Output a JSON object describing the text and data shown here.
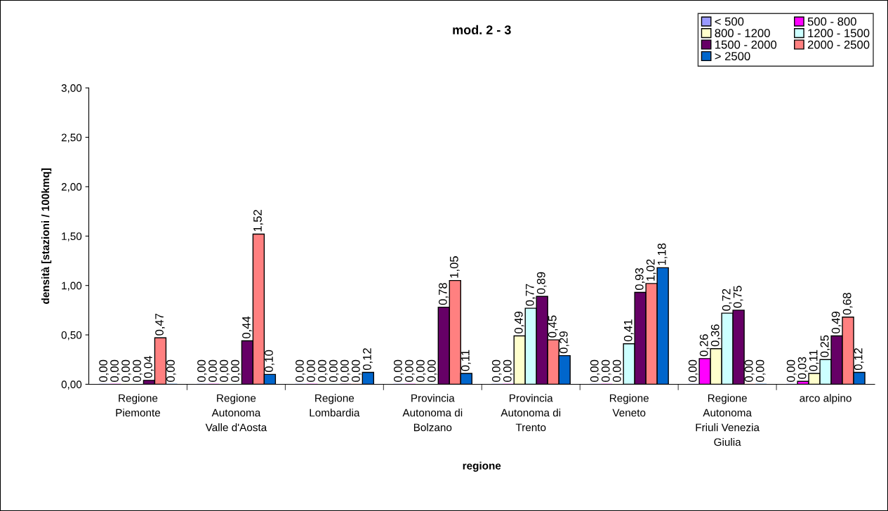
{
  "chart_data": {
    "type": "bar",
    "title": "mod. 2 - 3",
    "xlabel": "regione",
    "ylabel": "densità [stazioni / 100kmq]",
    "categories": [
      "Regione\nPiemonte",
      "Regione\nAutonoma\nValle d'Aosta",
      "Regione\nLombardia",
      "Provincia\nAutonoma di\nBolzano",
      "Provincia\nAutonoma di\nTrento",
      "Regione\nVeneto",
      "Regione\nAutonoma\nFriuli Venezia\nGiulia",
      "arco alpino"
    ],
    "series": [
      {
        "name": "< 500",
        "color": "#9999ff",
        "values": [
          0,
          0,
          0,
          0,
          0,
          0,
          0,
          0
        ],
        "value_labels": [
          "0,00",
          "0,00",
          "0,00",
          "0,00",
          "0,00",
          "0,00",
          "0,00",
          "0,00"
        ]
      },
      {
        "name": "500 - 800",
        "color": "#ff00ff",
        "values": [
          0,
          0,
          0,
          0,
          0,
          0,
          0.26,
          0.03
        ],
        "value_labels": [
          "0,00",
          "0,00",
          "0,00",
          "0,00",
          "0,00",
          "0,00",
          "0,26",
          "0,03"
        ]
      },
      {
        "name": "800 - 1200",
        "color": "#ffffcc",
        "values": [
          0,
          0,
          0,
          0,
          0.49,
          0,
          0.36,
          0.11
        ],
        "value_labels": [
          "0,00",
          "0,00",
          "0,00",
          "0,00",
          "0,49",
          "0,00",
          "0,36",
          "0,11"
        ]
      },
      {
        "name": "1200 - 1500",
        "color": "#ccffff",
        "values": [
          0,
          0,
          0,
          0,
          0.77,
          0.41,
          0.72,
          0.25
        ],
        "value_labels": [
          "0,00",
          "0,00",
          "0,00",
          "0,00",
          "0,77",
          "0,41",
          "0,72",
          "0,25"
        ]
      },
      {
        "name": "1500 - 2000",
        "color": "#660066",
        "values": [
          0.04,
          0.44,
          0,
          0.78,
          0.89,
          0.93,
          0.75,
          0.49
        ],
        "value_labels": [
          "0,04",
          "0,44",
          "0,00",
          "0,78",
          "0,89",
          "0,93",
          "0,75",
          "0,49"
        ]
      },
      {
        "name": "2000 - 2500",
        "color": "#ff8080",
        "values": [
          0.47,
          1.52,
          0,
          1.05,
          0.45,
          1.02,
          0,
          0.68
        ],
        "value_labels": [
          "0,47",
          "1,52",
          "0,00",
          "1,05",
          "0,45",
          "1,02",
          "0,00",
          "0,68"
        ]
      },
      {
        "name": "> 2500",
        "color": "#0066cc",
        "values": [
          0,
          0.1,
          0.12,
          0.11,
          0.29,
          1.18,
          0,
          0.12
        ],
        "value_labels": [
          "0,00",
          "0,10",
          "0,12",
          "0,11",
          "0,29",
          "1,18",
          "0,00",
          "0,12"
        ]
      }
    ],
    "ylim": [
      0,
      3
    ],
    "yticks": [
      {
        "value": 0,
        "label": "0,00"
      },
      {
        "value": 0.5,
        "label": "0,50"
      },
      {
        "value": 1,
        "label": "1,00"
      },
      {
        "value": 1.5,
        "label": "1,50"
      },
      {
        "value": 2,
        "label": "2,00"
      },
      {
        "value": 2.5,
        "label": "2,50"
      },
      {
        "value": 3,
        "label": "3,00"
      }
    ],
    "grid": false,
    "legend": "top right"
  }
}
